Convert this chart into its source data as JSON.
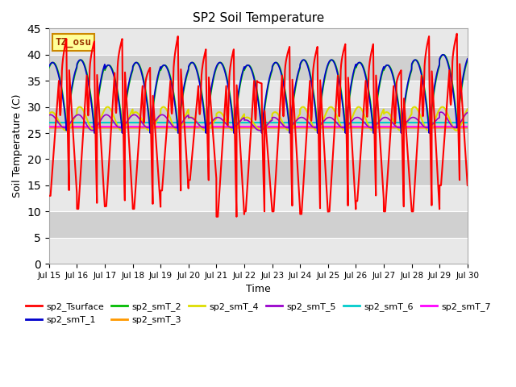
{
  "title": "SP2 Soil Temperature",
  "ylabel": "Soil Temperature (C)",
  "xlabel": "Time",
  "ylim": [
    0,
    45
  ],
  "yticks": [
    0,
    5,
    10,
    15,
    20,
    25,
    30,
    35,
    40,
    45
  ],
  "xtick_labels": [
    "Jul 15",
    "Jul 16",
    "Jul 17",
    "Jul 18",
    "Jul 19",
    "Jul 20",
    "Jul 21",
    "Jul 22",
    "Jul 23",
    "Jul 24",
    "Jul 25",
    "Jul 26",
    "Jul 27",
    "Jul 28",
    "Jul 29",
    "Jul 30"
  ],
  "background_color": "#ffffff",
  "plot_bg_color": "#d8d8d8",
  "annotation_text": "TZ_osu",
  "annotation_bg": "#ffff99",
  "annotation_border": "#cc8800",
  "series_colors": {
    "sp2_Tsurface": "#ff0000",
    "sp2_smT_1": "#0000cc",
    "sp2_smT_2": "#00bb00",
    "sp2_smT_3": "#ff9900",
    "sp2_smT_4": "#dddd00",
    "sp2_smT_5": "#9900cc",
    "sp2_smT_6": "#00cccc",
    "sp2_smT_7": "#ff00ff"
  },
  "n_days": 15,
  "surface_peaks": [
    43,
    42.5,
    43,
    37.5,
    43.5,
    41,
    41,
    34.5,
    41.5,
    41.5,
    42,
    42,
    37,
    43.5,
    44
  ],
  "surface_mins": [
    13,
    10.5,
    11,
    10.5,
    14,
    16,
    9,
    10,
    10,
    9.5,
    10,
    12,
    10,
    10,
    15
  ],
  "surface_secondary_peaks": [
    35,
    36,
    36.5,
    34,
    35,
    34,
    34,
    35,
    36,
    35,
    36,
    35,
    34,
    36,
    37
  ],
  "smT12_peaks": [
    38.5,
    39,
    38,
    38.5,
    38,
    38.5,
    38.5,
    38,
    38.5,
    39,
    39,
    38.5,
    38,
    39,
    40
  ],
  "smT12_mins": [
    25.5,
    25,
    25,
    25,
    25,
    25,
    25,
    25,
    25,
    25,
    25,
    25,
    25,
    25,
    26
  ],
  "smT4_peaks": [
    29,
    30,
    30,
    29,
    30,
    28,
    29,
    28,
    29,
    30,
    30,
    30,
    29,
    30,
    30
  ],
  "smT4_mins": [
    25.5,
    25.5,
    25.5,
    25.5,
    25.5,
    25.5,
    25.5,
    25.5,
    25.5,
    25.5,
    25.5,
    25.5,
    25.5,
    25.5,
    25.5
  ],
  "smT5_peaks": [
    28.5,
    28.5,
    28.5,
    28.5,
    28.5,
    28,
    28,
    27.5,
    28,
    28,
    28,
    28,
    28,
    28,
    29
  ],
  "smT5_mins": [
    26,
    25.5,
    26,
    26,
    26,
    26,
    26,
    25.5,
    26,
    26,
    26,
    26,
    26,
    26,
    26
  ],
  "smT6_level": 27.0,
  "smT7_level": 26.2
}
